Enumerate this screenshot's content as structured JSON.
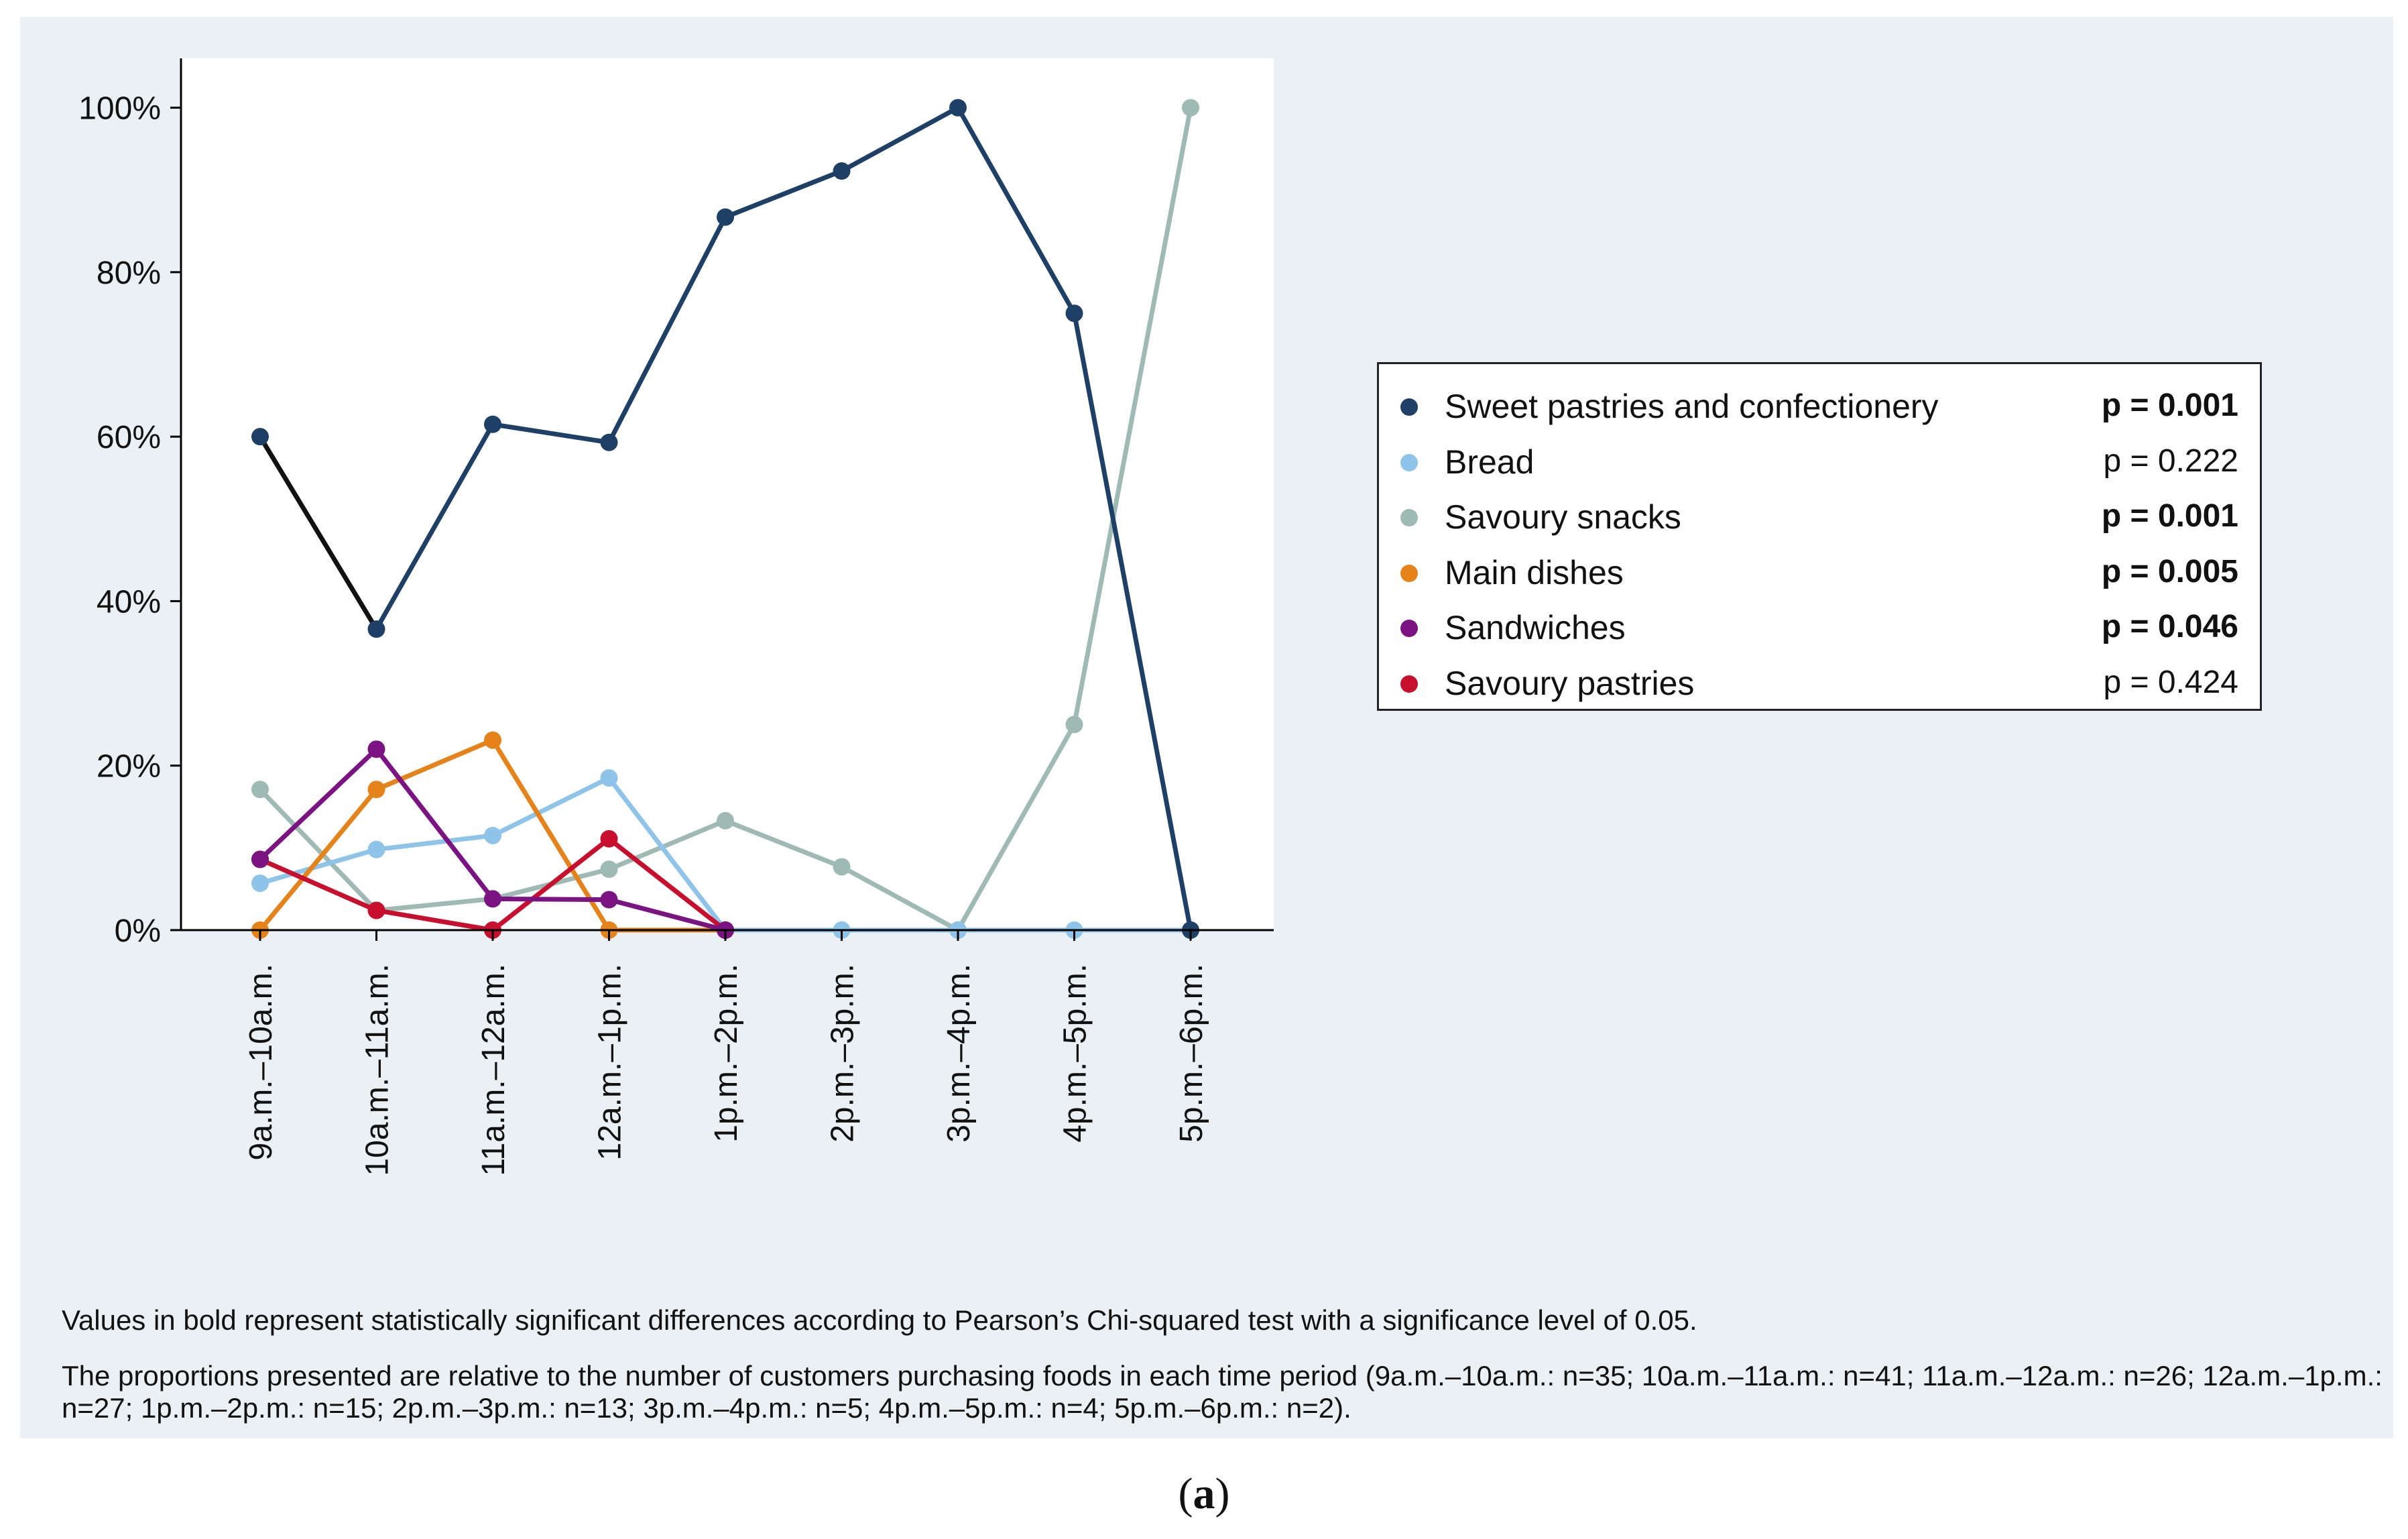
{
  "chart_data": {
    "type": "line",
    "categories": [
      "9a.m.–10a.m.",
      "10a.m.–11a.m.",
      "11a.m.–12a.m.",
      "12a.m.–1p.m.",
      "1p.m.–2p.m.",
      "2p.m.–3p.m.",
      "3p.m.–4p.m.",
      "4p.m.–5p.m.",
      "5p.m.–6p.m."
    ],
    "yticks": [
      "0%",
      "20%",
      "40%",
      "60%",
      "80%",
      "100%"
    ],
    "ytick_values": [
      0,
      20,
      40,
      60,
      80,
      100
    ],
    "ylim": [
      0,
      106
    ],
    "series": [
      {
        "name": "Savoury snacks",
        "color": "#9fbab4",
        "p": "p = 0.001",
        "significant": true,
        "values": [
          17.1,
          2.4,
          3.8,
          7.4,
          13.3,
          7.7,
          0,
          25,
          100
        ]
      },
      {
        "name": "Bread",
        "color": "#8ec3ea",
        "p": "p = 0.222",
        "significant": false,
        "values": [
          5.7,
          9.8,
          11.5,
          18.5,
          0,
          0,
          0,
          0,
          0
        ]
      },
      {
        "name": "Main dishes",
        "color": "#e5831a",
        "p": "p = 0.005",
        "significant": true,
        "values": [
          0,
          17.1,
          23.1,
          0,
          0,
          null,
          null,
          null,
          null
        ]
      },
      {
        "name": "Savoury pastries",
        "color": "#c8102e",
        "p": "p = 0.424",
        "significant": false,
        "values": [
          8.6,
          2.4,
          0,
          11.1,
          0,
          null,
          null,
          null,
          null
        ]
      },
      {
        "name": "Sandwiches",
        "color": "#7b1382",
        "p": "p = 0.046",
        "significant": true,
        "values": [
          8.6,
          22.0,
          3.8,
          3.7,
          0,
          null,
          null,
          null,
          null
        ]
      },
      {
        "name": "Sweet pastries and confectionery",
        "color": "#1e3f66",
        "p": "p = 0.001",
        "significant": true,
        "values": [
          60.0,
          36.6,
          61.5,
          59.3,
          86.7,
          92.3,
          100,
          75,
          0
        ]
      }
    ],
    "legend_order": [
      5,
      1,
      0,
      2,
      4,
      3
    ]
  },
  "notes": {
    "significance": "Values in bold represent statistically significant differences according to Pearson’s Chi-squared test with a significance level of 0.05.",
    "proportions": "The proportions presented are relative to the number of customers purchasing foods in each time period (9a.m.–10a.m.: n=35; 10a.m.–11a.m.: n=41; 11a.m.–12a.m.: n=26; 12a.m.–1p.m.: n=27; 1p.m.–2p.m.: n=15; 2p.m.–3p.m.: n=13; 3p.m.–4p.m.: n=5; 4p.m.–5p.m.: n=4; 5p.m.–6p.m.: n=2)."
  },
  "caption": {
    "open": "(",
    "letter": "a",
    "close": ")"
  }
}
